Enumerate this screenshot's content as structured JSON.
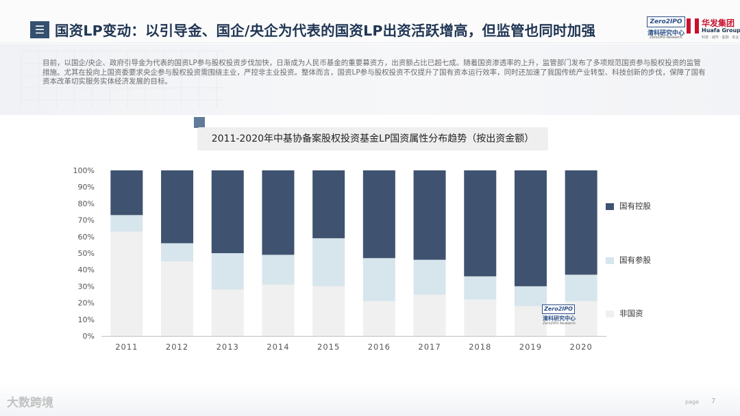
{
  "header": {
    "menu_icon": "menu-icon",
    "title": "国资LP变动：以引导金、国企/央企为代表的国资LP出资活跃增高，但监管也同时加强",
    "logo_zero_box": "Zero2IPO",
    "logo_zero_cn": "清科研究中心",
    "logo_zero_en": "Zero2IPO Research",
    "logo_huafa_cn": "华发集团",
    "logo_huafa_en": "Huafa Group",
    "logo_huafa_tag": "科技 · 城市 · 金融 · 实业"
  },
  "intro": "目前，以国企/央企、政府引导金为代表的国资LP参与股权投资步伐加快，日渐成为人民币基金的重要募资方，出资额占比已超七成。随着国资渗透率的上升，监管部门发布了多项规范国资参与股权投资的监管措施。尤其在投向上国资委要求央企参与股权投资需围绕主业，严控非主业投资。整体而言，国资LP参与股权投资不仅提升了国有资本运行效率，同时还加速了我国传统产业转型、科技创新的步伐，保障了国有资本改革切实服务实体经济发展的目标。",
  "chart_title": "2011-2020年中基协备案股权投资基金LP国资属性分布趋势（按出资金额）",
  "chart_data": {
    "type": "bar",
    "stacked": true,
    "title": "2011-2020年中基协备案股权投资基金LP国资属性分布趋势（按出资金额）",
    "categories": [
      "2011",
      "2012",
      "2013",
      "2014",
      "2015",
      "2016",
      "2017",
      "2018",
      "2019",
      "2020"
    ],
    "y_ticks": [
      "0%",
      "10%",
      "20%",
      "30%",
      "40%",
      "50%",
      "60%",
      "70%",
      "80%",
      "90%",
      "100%"
    ],
    "ylim": [
      0,
      100
    ],
    "series": [
      {
        "name": "非国资",
        "color": "#f0f0f0",
        "values": [
          63,
          45,
          28,
          31,
          30,
          21,
          25,
          22,
          18,
          21
        ]
      },
      {
        "name": "国有参股",
        "color": "#d7e5ec",
        "values": [
          10,
          11,
          22,
          18,
          29,
          26,
          21,
          14,
          12,
          16
        ]
      },
      {
        "name": "国有控股",
        "color": "#3f5370",
        "values": [
          27,
          44,
          50,
          51,
          41,
          53,
          54,
          64,
          70,
          63
        ]
      }
    ],
    "legend_order": [
      "国有控股",
      "国有参股",
      "非国资"
    ],
    "legend_position": "right"
  },
  "watermark": {
    "box": "Zero2IPO",
    "cn": "清科研究中心",
    "en": "Zero2IPO Research"
  },
  "footer": {
    "brand": "大数跨境",
    "page_label": "page",
    "page_num": "7"
  }
}
